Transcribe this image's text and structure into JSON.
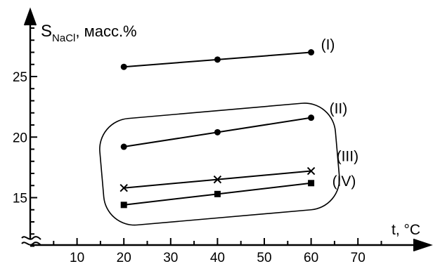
{
  "chart_data": {
    "type": "line",
    "ylabel_main": "S",
    "ylabel_sub": "NaCl",
    "ylabel_rest": ", масс.%",
    "xlabel": "t, °C",
    "x_ticks": [
      "10",
      "20",
      "30",
      "40",
      "50",
      "60",
      "70"
    ],
    "y_ticks": [
      "15",
      "20",
      "25"
    ],
    "xlim": [
      0,
      78
    ],
    "ylim": [
      10.5,
      29.5
    ],
    "axis_breaks": true,
    "series": [
      {
        "name": "(I)",
        "marker": "circle",
        "x": [
          20,
          40,
          60
        ],
        "y": [
          25.8,
          26.4,
          27.0
        ]
      },
      {
        "name": "(II)",
        "marker": "circle",
        "x": [
          20,
          40,
          60
        ],
        "y": [
          19.2,
          20.4,
          21.6
        ]
      },
      {
        "name": "(III)",
        "marker": "cross",
        "x": [
          20,
          40,
          60
        ],
        "y": [
          15.8,
          16.5,
          17.2
        ]
      },
      {
        "name": "(IV)",
        "marker": "square",
        "x": [
          20,
          40,
          60
        ],
        "y": [
          14.4,
          15.3,
          16.2
        ]
      }
    ],
    "grouped_series": [
      "(II)",
      "(III)",
      "(IV)"
    ]
  },
  "colors": {
    "ink": "#000000",
    "background": "#ffffff"
  }
}
